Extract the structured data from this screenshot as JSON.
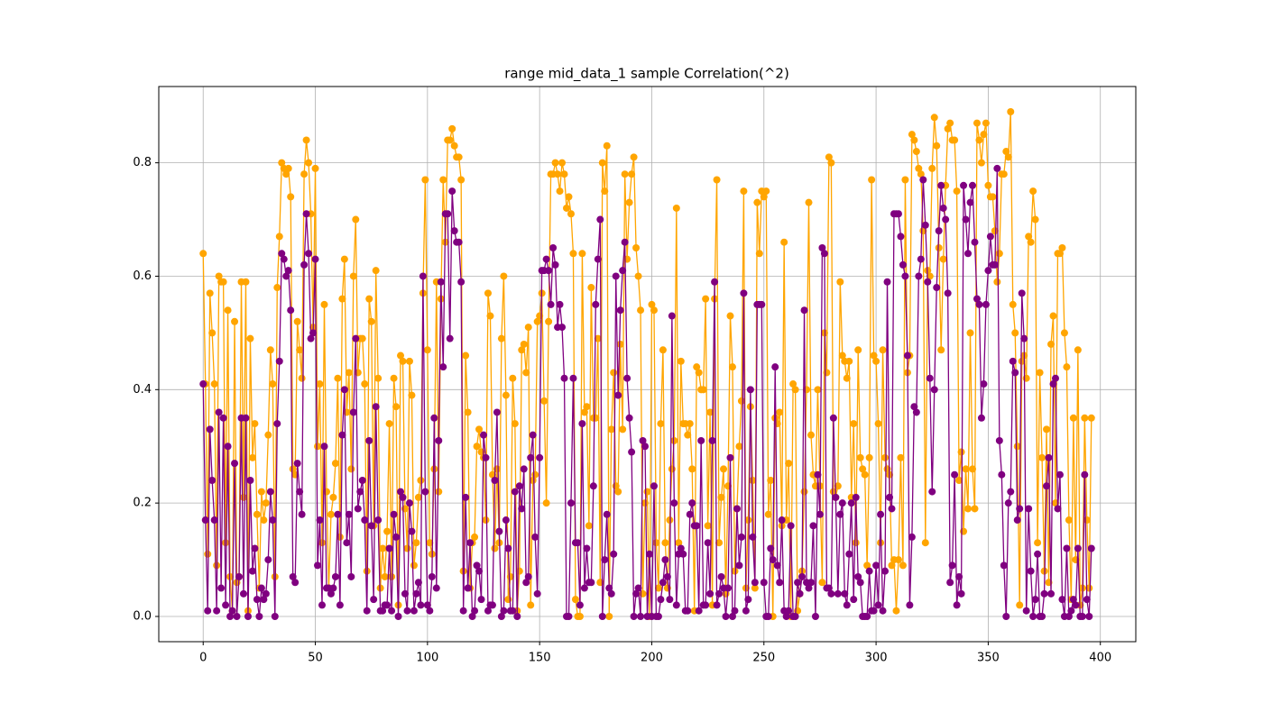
{
  "chart_data": {
    "type": "line",
    "title": "range mid_data_1 sample Correlation(^2)",
    "x": [
      0,
      1,
      2,
      3,
      4,
      5,
      6,
      7,
      8,
      9,
      10,
      11,
      12,
      13,
      14,
      15,
      16,
      17,
      18,
      19,
      20,
      21,
      22,
      23,
      24,
      25,
      26,
      27,
      28,
      29,
      30,
      31,
      32,
      33,
      34,
      35,
      36,
      37,
      38,
      39,
      40,
      41,
      42,
      43,
      44,
      45,
      46,
      47,
      48,
      49,
      50,
      51,
      52,
      53,
      54,
      55,
      56,
      57,
      58,
      59,
      60,
      61,
      62,
      63,
      64,
      65,
      66,
      67,
      68,
      69,
      70,
      71,
      72,
      73,
      74,
      75,
      76,
      77,
      78,
      79,
      80,
      81,
      82,
      83,
      84,
      85,
      86,
      87,
      88,
      89,
      90,
      91,
      92,
      93,
      94,
      95,
      96,
      97,
      98,
      99,
      100,
      101,
      102,
      103,
      104,
      105,
      106,
      107,
      108,
      109,
      110,
      111,
      112,
      113,
      114,
      115,
      116,
      117,
      118,
      119,
      120,
      121,
      122,
      123,
      124,
      125,
      126,
      127,
      128,
      129,
      130,
      131,
      132,
      133,
      134,
      135,
      136,
      137,
      138,
      139,
      140,
      141,
      142,
      143,
      144,
      145,
      146,
      147,
      148,
      149,
      150,
      151,
      152,
      153,
      154,
      155,
      156,
      157,
      158,
      159,
      160,
      161,
      162,
      163,
      164,
      165,
      166,
      167,
      168,
      169,
      170,
      171,
      172,
      173,
      174,
      175,
      176,
      177,
      178,
      179,
      180,
      181,
      182,
      183,
      184,
      185,
      186,
      187,
      188,
      189,
      190,
      191,
      192,
      193,
      194,
      195,
      196,
      197,
      198,
      199,
      200,
      201,
      202,
      203,
      204,
      205,
      206,
      207,
      208,
      209,
      210,
      211,
      212,
      213,
      214,
      215,
      216,
      217,
      218,
      219,
      220,
      221,
      222,
      223,
      224,
      225,
      226,
      227,
      228,
      229,
      230,
      231,
      232,
      233,
      234,
      235,
      236,
      237,
      238,
      239,
      240,
      241,
      242,
      243,
      244,
      245,
      246,
      247,
      248,
      249,
      250,
      251,
      252,
      253,
      254,
      255,
      256,
      257,
      258,
      259,
      260,
      261,
      262,
      263,
      264,
      265,
      266,
      267,
      268,
      269,
      270,
      271,
      272,
      273,
      274,
      275,
      276,
      277,
      278,
      279,
      280,
      281,
      282,
      283,
      284,
      285,
      286,
      287,
      288,
      289,
      290,
      291,
      292,
      293,
      294,
      295,
      296,
      297,
      298,
      299,
      300,
      301,
      302,
      303,
      304,
      305,
      306,
      307,
      308,
      309,
      310,
      311,
      312,
      313,
      314,
      315,
      316,
      317,
      318,
      319,
      320,
      321,
      322,
      323,
      324,
      325,
      326,
      327,
      328,
      329,
      330,
      331,
      332,
      333,
      334,
      335,
      336,
      337,
      338,
      339,
      340,
      341,
      342,
      343,
      344,
      345,
      346,
      347,
      348,
      349,
      350,
      351,
      352,
      353,
      354,
      355,
      356,
      357,
      358,
      359,
      360,
      361,
      362,
      363,
      364,
      365,
      366,
      367,
      368,
      369,
      370,
      371,
      372,
      373,
      374,
      375,
      376,
      377,
      378,
      379,
      380,
      381,
      382,
      383,
      384,
      385,
      386,
      387,
      388,
      389,
      390,
      391,
      392,
      393,
      394,
      395,
      396
    ],
    "series": [
      {
        "color": "orange",
        "values": [
          0.64,
          0.41,
          0.11,
          0.57,
          0.5,
          0.41,
          0.09,
          0.6,
          0.59,
          0.59,
          0.13,
          0.54,
          0.07,
          0.01,
          0.52,
          0.06,
          0.07,
          0.59,
          0.21,
          0.59,
          0.01,
          0.49,
          0.28,
          0.34,
          0.18,
          0.05,
          0.22,
          0.17,
          0.2,
          0.32,
          0.47,
          0.41,
          0.07,
          0.58,
          0.67,
          0.8,
          0.79,
          0.78,
          0.79,
          0.74,
          0.26,
          0.25,
          0.52,
          0.47,
          0.42,
          0.78,
          0.84,
          0.8,
          0.71,
          0.51,
          0.79,
          0.3,
          0.41,
          0.13,
          0.55,
          0.22,
          0.05,
          0.18,
          0.21,
          0.27,
          0.42,
          0.14,
          0.56,
          0.63,
          0.36,
          0.43,
          0.26,
          0.6,
          0.7,
          0.43,
          0.49,
          0.49,
          0.41,
          0.08,
          0.56,
          0.52,
          0.16,
          0.61,
          0.42,
          0.05,
          0.12,
          0.07,
          0.15,
          0.34,
          0.07,
          0.42,
          0.37,
          0.02,
          0.46,
          0.45,
          0.19,
          0.12,
          0.45,
          0.39,
          0.09,
          0.13,
          0.21,
          0.24,
          0.57,
          0.77,
          0.47,
          0.13,
          0.11,
          0.26,
          0.59,
          0.22,
          0.56,
          0.77,
          0.66,
          0.84,
          0.84,
          0.86,
          0.83,
          0.81,
          0.81,
          0.77,
          0.08,
          0.46,
          0.36,
          0.05,
          0.13,
          0.14,
          0.3,
          0.33,
          0.29,
          0.28,
          0.17,
          0.57,
          0.53,
          0.25,
          0.12,
          0.26,
          0.13,
          0.49,
          0.6,
          0.39,
          0.03,
          0.07,
          0.42,
          0.34,
          0.01,
          0.08,
          0.47,
          0.48,
          0.43,
          0.51,
          0.02,
          0.24,
          0.25,
          0.52,
          0.53,
          0.57,
          0.38,
          0.2,
          0.52,
          0.78,
          0.78,
          0.8,
          0.78,
          0.75,
          0.8,
          0.78,
          0.72,
          0.74,
          0.71,
          0.64,
          0.03,
          0.0,
          0.0,
          0.64,
          0.36,
          0.37,
          0.16,
          0.58,
          0.35,
          0.35,
          0.49,
          0.06,
          0.8,
          0.75,
          0.83,
          0.0,
          0.33,
          0.43,
          0.23,
          0.22,
          0.48,
          0.33,
          0.78,
          0.63,
          0.73,
          0.78,
          0.81,
          0.65,
          0.6,
          0.54,
          0.04,
          0.2,
          0.22,
          0.0,
          0.55,
          0.54,
          0.13,
          0.05,
          0.34,
          0.47,
          0.13,
          0.05,
          0.17,
          0.26,
          0.31,
          0.72,
          0.13,
          0.45,
          0.34,
          0.34,
          0.32,
          0.34,
          0.26,
          0.01,
          0.44,
          0.43,
          0.4,
          0.4,
          0.56,
          0.16,
          0.36,
          0.02,
          0.56,
          0.77,
          0.13,
          0.21,
          0.26,
          0.04,
          0.23,
          0.53,
          0.44,
          0.08,
          0.19,
          0.3,
          0.38,
          0.75,
          0.05,
          0.17,
          0.37,
          0.24,
          0.05,
          0.73,
          0.64,
          0.75,
          0.74,
          0.75,
          0.18,
          0.24,
          0.0,
          0.35,
          0.34,
          0.36,
          0.16,
          0.66,
          0.17,
          0.27,
          0.0,
          0.41,
          0.4,
          0.01,
          0.04,
          0.08,
          0.22,
          0.4,
          0.73,
          0.32,
          0.25,
          0.23,
          0.4,
          0.23,
          0.06,
          0.5,
          0.43,
          0.81,
          0.8,
          0.22,
          0.21,
          0.23,
          0.59,
          0.46,
          0.45,
          0.42,
          0.45,
          0.21,
          0.34,
          0.13,
          0.47,
          0.28,
          0.26,
          0.25,
          0.09,
          0.28,
          0.77,
          0.46,
          0.45,
          0.34,
          0.13,
          0.47,
          0.28,
          0.26,
          0.25,
          0.09,
          0.1,
          0.01,
          0.1,
          0.28,
          0.09,
          0.77,
          0.43,
          0.46,
          0.85,
          0.84,
          0.82,
          0.79,
          0.78,
          0.68,
          0.13,
          0.61,
          0.6,
          0.79,
          0.88,
          0.83,
          0.65,
          0.47,
          0.63,
          0.76,
          0.86,
          0.87,
          0.84,
          0.84,
          0.75,
          0.24,
          0.29,
          0.15,
          0.26,
          0.19,
          0.5,
          0.26,
          0.19,
          0.87,
          0.84,
          0.8,
          0.85,
          0.87,
          0.76,
          0.74,
          0.74,
          0.68,
          0.59,
          0.64,
          0.78,
          0.78,
          0.82,
          0.81,
          0.89,
          0.55,
          0.5,
          0.3,
          0.02,
          0.45,
          0.46,
          0.42,
          0.67,
          0.66,
          0.75,
          0.7,
          0.13,
          0.43,
          0.28,
          0.08,
          0.33,
          0.06,
          0.48,
          0.53,
          0.2,
          0.64,
          0.64,
          0.65,
          0.5,
          0.44,
          0.17,
          0.03,
          0.35,
          0.1,
          0.47,
          0.02,
          0.05,
          0.35,
          0.17,
          0.05,
          0.35
        ]
      },
      {
        "color": "purple",
        "values": [
          0.41,
          0.17,
          0.01,
          0.33,
          0.24,
          0.17,
          0.01,
          0.36,
          0.05,
          0.35,
          0.02,
          0.3,
          0.0,
          0.01,
          0.27,
          0.0,
          0.07,
          0.35,
          0.04,
          0.35,
          0.0,
          0.24,
          0.08,
          0.12,
          0.03,
          0.0,
          0.05,
          0.03,
          0.04,
          0.1,
          0.22,
          0.17,
          0.0,
          0.34,
          0.45,
          0.64,
          0.63,
          0.6,
          0.61,
          0.54,
          0.07,
          0.06,
          0.27,
          0.22,
          0.18,
          0.62,
          0.71,
          0.64,
          0.49,
          0.5,
          0.63,
          0.09,
          0.17,
          0.02,
          0.3,
          0.05,
          0.05,
          0.04,
          0.05,
          0.07,
          0.18,
          0.02,
          0.32,
          0.4,
          0.13,
          0.18,
          0.07,
          0.36,
          0.49,
          0.19,
          0.22,
          0.24,
          0.17,
          0.01,
          0.31,
          0.16,
          0.03,
          0.37,
          0.17,
          0.01,
          0.01,
          0.02,
          0.02,
          0.12,
          0.01,
          0.18,
          0.14,
          0.0,
          0.22,
          0.21,
          0.04,
          0.01,
          0.2,
          0.15,
          0.01,
          0.04,
          0.06,
          0.02,
          0.6,
          0.22,
          0.02,
          0.01,
          0.07,
          0.35,
          0.05,
          0.31,
          0.59,
          0.44,
          0.71,
          0.71,
          0.49,
          0.75,
          0.68,
          0.66,
          0.66,
          0.59,
          0.01,
          0.21,
          0.05,
          0.13,
          0.0,
          0.01,
          0.09,
          0.08,
          0.03,
          0.32,
          0.28,
          0.01,
          0.02,
          0.02,
          0.24,
          0.36,
          0.15,
          0.0,
          0.01,
          0.17,
          0.12,
          0.01,
          0.01,
          0.22,
          0.0,
          0.23,
          0.19,
          0.26,
          0.06,
          0.07,
          0.28,
          0.32,
          0.14,
          0.04,
          0.28,
          0.61,
          0.61,
          0.63,
          0.61,
          0.55,
          0.65,
          0.62,
          0.51,
          0.55,
          0.51,
          0.42,
          0.0,
          0.0,
          0.2,
          0.42,
          0.13,
          0.13,
          0.02,
          0.34,
          0.05,
          0.12,
          0.06,
          0.06,
          0.23,
          0.55,
          0.63,
          0.7,
          0.0,
          0.1,
          0.18,
          0.05,
          0.04,
          0.11,
          0.6,
          0.39,
          0.54,
          0.61,
          0.66,
          0.42,
          0.35,
          0.29,
          0.0,
          0.04,
          0.05,
          0.0,
          0.31,
          0.3,
          0.0,
          0.11,
          0.0,
          0.23,
          0.0,
          0.0,
          0.03,
          0.06,
          0.1,
          0.07,
          0.03,
          0.53,
          0.2,
          0.02,
          0.11,
          0.12,
          0.11,
          0.01,
          0.01,
          0.18,
          0.2,
          0.16,
          0.16,
          0.01,
          0.31,
          0.02,
          0.02,
          0.13,
          0.04,
          0.31,
          0.59,
          0.02,
          0.04,
          0.07,
          0.05,
          0.0,
          0.05,
          0.28,
          0.0,
          0.01,
          0.19,
          0.09,
          0.14,
          0.57,
          0.01,
          0.03,
          0.4,
          0.14,
          0.06,
          0.55,
          0.55,
          0.55,
          0.06,
          0.0,
          0.0,
          0.12,
          0.1,
          0.44,
          0.09,
          0.06,
          0.17,
          0.01,
          0.0,
          0.01,
          0.16,
          0.0,
          0.0,
          0.06,
          0.04,
          0.07,
          0.54,
          0.06,
          0.05,
          0.06,
          0.16,
          0.0,
          0.25,
          0.18,
          0.65,
          0.64,
          0.05,
          0.05,
          0.04,
          0.35,
          0.21,
          0.04,
          0.18,
          0.2,
          0.04,
          0.02,
          0.11,
          0.2,
          0.03,
          0.21,
          0.07,
          0.06,
          0.0,
          0.0,
          0.0,
          0.08,
          0.01,
          0.01,
          0.09,
          0.02,
          0.18,
          0.01,
          0.08,
          0.59,
          0.21,
          0.19,
          0.71,
          0.71,
          0.71,
          0.67,
          0.62,
          0.6,
          0.46,
          0.02,
          0.14,
          0.37,
          0.36,
          0.6,
          0.63,
          0.77,
          0.69,
          0.59,
          0.42,
          0.22,
          0.4,
          0.58,
          0.68,
          0.76,
          0.72,
          0.7,
          0.57,
          0.06,
          0.09,
          0.25,
          0.02,
          0.07,
          0.04,
          0.76,
          0.7,
          0.64,
          0.73,
          0.76,
          0.66,
          0.56,
          0.55,
          0.35,
          0.41,
          0.55,
          0.61,
          0.67,
          0.62,
          0.62,
          0.79,
          0.31,
          0.25,
          0.09,
          0.0,
          0.2,
          0.22,
          0.45,
          0.43,
          0.17,
          0.19,
          0.57,
          0.49,
          0.01,
          0.19,
          0.08,
          0.0,
          0.03,
          0.11,
          0.0,
          0.0,
          0.04,
          0.23,
          0.28,
          0.04,
          0.41,
          0.42,
          0.19,
          0.25,
          0.03,
          0.0,
          0.12,
          0.0,
          0.01,
          0.03,
          0.02,
          0.12,
          0.0,
          0.0,
          0.25,
          0.03,
          0.0,
          0.12
        ]
      }
    ],
    "xlim": [
      -19.8,
      415.8
    ],
    "ylim": [
      -0.0445,
      0.9345
    ],
    "xticks": [
      0,
      50,
      100,
      150,
      200,
      250,
      300,
      350,
      400
    ],
    "yticks": [
      {
        "value": 0,
        "label": "0.0"
      },
      {
        "value": 0.2,
        "label": "0.2"
      },
      {
        "value": 0.4,
        "label": "0.4"
      },
      {
        "value": 0.6,
        "label": "0.6"
      },
      {
        "value": 0.8,
        "label": "0.8"
      }
    ],
    "grid": true
  }
}
